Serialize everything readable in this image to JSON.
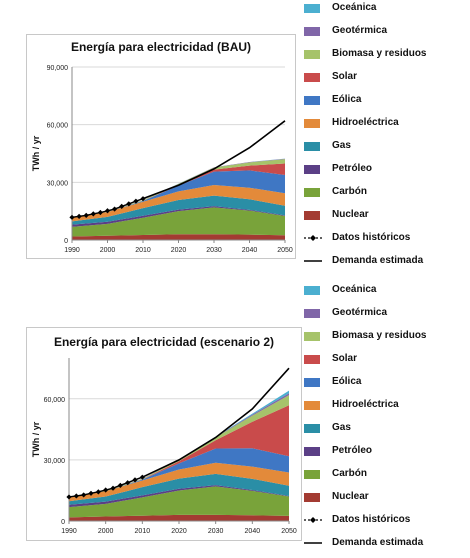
{
  "chart_data": [
    {
      "type": "area",
      "title": "Energía para electricidad (BAU)",
      "xlabel": "",
      "ylabel": "TWh / yr",
      "xlim": [
        1990,
        2050
      ],
      "ylim": [
        0,
        90000
      ],
      "x": [
        1990,
        2000,
        2010,
        2020,
        2030,
        2040,
        2050
      ],
      "xticks": [
        "1990",
        "2000",
        "2010",
        "2020",
        "2030",
        "2040",
        "2050"
      ],
      "yticks": [
        "0",
        "30,000",
        "60,000",
        "90,000"
      ],
      "ytick_values": [
        0,
        30000,
        60000,
        90000
      ],
      "series": [
        {
          "name": "Nuclear",
          "color": "#a33b32",
          "values": [
            1800,
            2200,
            2600,
            3000,
            3000,
            2800,
            2500
          ]
        },
        {
          "name": "Carbón",
          "color": "#79a33a",
          "values": [
            5000,
            6200,
            9000,
            12000,
            14000,
            12500,
            10000
          ]
        },
        {
          "name": "Petróleo",
          "color": "#5b3f86",
          "values": [
            1200,
            1100,
            1000,
            800,
            600,
            400,
            300
          ]
        },
        {
          "name": "Gas",
          "color": "#2a8ea6",
          "values": [
            1700,
            2500,
            4000,
            5000,
            5500,
            5500,
            5000
          ]
        },
        {
          "name": "Hidroeléctrica",
          "color": "#e38a3a",
          "values": [
            2200,
            2600,
            3300,
            4500,
            5500,
            6000,
            6500
          ]
        },
        {
          "name": "Eólica",
          "color": "#3f77c4",
          "values": [
            0,
            30,
            400,
            3000,
            7000,
            9000,
            9500
          ]
        },
        {
          "name": "Solar",
          "color": "#c94b4b",
          "values": [
            0,
            0,
            50,
            300,
            1000,
            2500,
            6000
          ]
        },
        {
          "name": "Biomasa y residuos",
          "color": "#a6c36a",
          "values": [
            100,
            200,
            350,
            600,
            1100,
            1700,
            2300
          ]
        },
        {
          "name": "Geotérmica",
          "color": "#8066a8",
          "values": [
            50,
            60,
            70,
            90,
            120,
            160,
            200
          ]
        },
        {
          "name": "Oceánica",
          "color": "#4bafd0",
          "values": [
            0,
            0,
            0,
            10,
            20,
            40,
            60
          ]
        }
      ],
      "historical": {
        "name": "Datos históricos",
        "x": [
          1990,
          1992,
          1994,
          1996,
          1998,
          2000,
          2002,
          2004,
          2006,
          2008,
          2010
        ],
        "values": [
          11800,
          12300,
          12800,
          13600,
          14300,
          15200,
          16100,
          17500,
          18800,
          20200,
          21500
        ]
      },
      "demand": {
        "name": "Demanda estimada",
        "x": [
          2010,
          2020,
          2030,
          2040,
          2050
        ],
        "values": [
          21500,
          28500,
          37000,
          48000,
          62000
        ]
      }
    },
    {
      "type": "area",
      "title": "Energía para electricidad (escenario 2)",
      "xlabel": "",
      "ylabel": "TWh / yr",
      "xlim": [
        1990,
        2050
      ],
      "ylim": [
        0,
        80000
      ],
      "x": [
        1990,
        2000,
        2010,
        2020,
        2030,
        2040,
        2050
      ],
      "xticks": [
        "1990",
        "2000",
        "2010",
        "2020",
        "2030",
        "2040",
        "2050"
      ],
      "yticks": [
        "0",
        "30,000",
        "60,000"
      ],
      "ytick_values": [
        0,
        30000,
        60000
      ],
      "series": [
        {
          "name": "Nuclear",
          "color": "#a33b32",
          "values": [
            1800,
            2200,
            2600,
            3000,
            3000,
            2800,
            2500
          ]
        },
        {
          "name": "Carbón",
          "color": "#79a33a",
          "values": [
            5000,
            6200,
            9000,
            12000,
            14000,
            12000,
            9500
          ]
        },
        {
          "name": "Petróleo",
          "color": "#5b3f86",
          "values": [
            1200,
            1100,
            1000,
            800,
            600,
            400,
            300
          ]
        },
        {
          "name": "Gas",
          "color": "#2a8ea6",
          "values": [
            1700,
            2500,
            4000,
            5000,
            5500,
            5500,
            5000
          ]
        },
        {
          "name": "Hidroeléctrica",
          "color": "#e38a3a",
          "values": [
            2200,
            2600,
            3300,
            4500,
            5500,
            6000,
            6500
          ]
        },
        {
          "name": "Eólica",
          "color": "#3f77c4",
          "values": [
            0,
            30,
            400,
            3000,
            7000,
            9000,
            8000
          ]
        },
        {
          "name": "Solar",
          "color": "#c94b4b",
          "values": [
            0,
            0,
            50,
            1000,
            4000,
            13000,
            25000
          ]
        },
        {
          "name": "Biomasa y residuos",
          "color": "#a6c36a",
          "values": [
            100,
            200,
            350,
            700,
            1500,
            3000,
            5000
          ]
        },
        {
          "name": "Geotérmica",
          "color": "#8066a8",
          "values": [
            50,
            60,
            70,
            100,
            200,
            500,
            900
          ]
        },
        {
          "name": "Oceánica",
          "color": "#4bafd0",
          "values": [
            0,
            0,
            0,
            20,
            100,
            500,
            1300
          ]
        }
      ],
      "historical": {
        "name": "Datos históricos",
        "x": [
          1990,
          1992,
          1994,
          1996,
          1998,
          2000,
          2002,
          2004,
          2006,
          2008,
          2010
        ],
        "values": [
          11800,
          12300,
          12800,
          13600,
          14300,
          15200,
          16100,
          17500,
          18800,
          20200,
          21500
        ]
      },
      "demand": {
        "name": "Demanda estimada",
        "x": [
          2010,
          2020,
          2030,
          2040,
          2050
        ],
        "values": [
          21500,
          30000,
          41000,
          55000,
          75000
        ]
      }
    }
  ],
  "legends": [
    {
      "items": [
        {
          "label": "Oceánica",
          "color": "#4bafd0",
          "kind": "swatch"
        },
        {
          "label": "Geotérmica",
          "color": "#8066a8",
          "kind": "swatch"
        },
        {
          "label": "Biomasa y residuos",
          "color": "#a6c36a",
          "kind": "swatch"
        },
        {
          "label": "Solar",
          "color": "#c94b4b",
          "kind": "swatch"
        },
        {
          "label": "Eólica",
          "color": "#3f77c4",
          "kind": "swatch"
        },
        {
          "label": "Hidroeléctrica",
          "color": "#e38a3a",
          "kind": "swatch"
        },
        {
          "label": "Gas",
          "color": "#2a8ea6",
          "kind": "swatch"
        },
        {
          "label": "Petróleo",
          "color": "#5b3f86",
          "kind": "swatch"
        },
        {
          "label": "Carbón",
          "color": "#79a33a",
          "kind": "swatch"
        },
        {
          "label": "Nuclear",
          "color": "#a33b32",
          "kind": "swatch"
        },
        {
          "label": "Datos históricos",
          "color": "#000000",
          "kind": "marker-line"
        },
        {
          "label": "Demanda estimada",
          "color": "#000000",
          "kind": "line"
        }
      ]
    },
    {
      "items": [
        {
          "label": "Oceánica",
          "color": "#4bafd0",
          "kind": "swatch"
        },
        {
          "label": "Geotérmica",
          "color": "#8066a8",
          "kind": "swatch"
        },
        {
          "label": "Biomasa y residuos",
          "color": "#a6c36a",
          "kind": "swatch"
        },
        {
          "label": "Solar",
          "color": "#c94b4b",
          "kind": "swatch"
        },
        {
          "label": "Eólica",
          "color": "#3f77c4",
          "kind": "swatch"
        },
        {
          "label": "Hidroeléctrica",
          "color": "#e38a3a",
          "kind": "swatch"
        },
        {
          "label": "Gas",
          "color": "#2a8ea6",
          "kind": "swatch"
        },
        {
          "label": "Petróleo",
          "color": "#5b3f86",
          "kind": "swatch"
        },
        {
          "label": "Carbón",
          "color": "#79a33a",
          "kind": "swatch"
        },
        {
          "label": "Nuclear",
          "color": "#a33b32",
          "kind": "swatch"
        },
        {
          "label": "Datos históricos",
          "color": "#000000",
          "kind": "marker-line"
        },
        {
          "label": "Demanda estimada",
          "color": "#000000",
          "kind": "line"
        }
      ]
    }
  ]
}
